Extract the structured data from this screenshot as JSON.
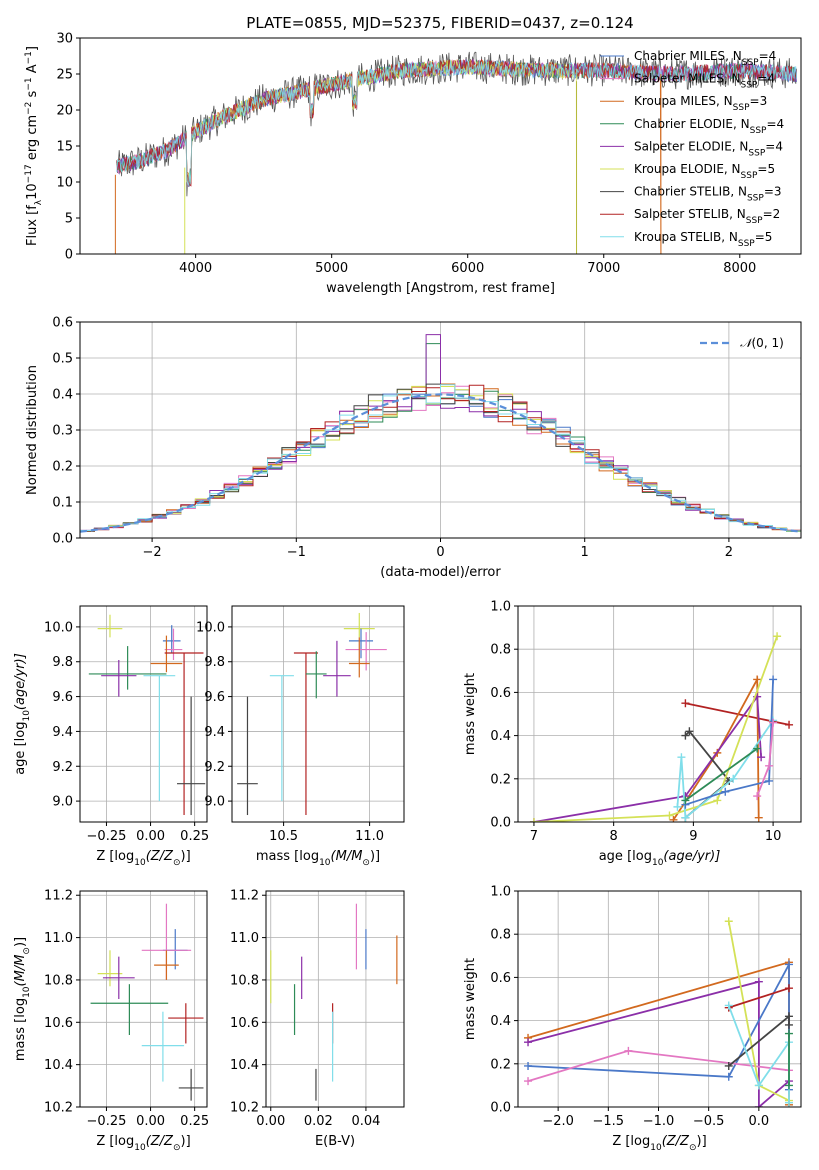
{
  "figure_title": "PLATE=0855, MJD=52375, FIBERID=0437, z=0.124",
  "legend_models": [
    {
      "label": "Chabrier MILES, N",
      "sub": "SSP",
      "eq": "=4",
      "color": "#4a78c8"
    },
    {
      "label": "Salpeter MILES, N",
      "sub": "SSP",
      "eq": "=4",
      "color": "#e377c2"
    },
    {
      "label": "Kroupa MILES, N",
      "sub": "SSP",
      "eq": "=3",
      "color": "#d2691e"
    },
    {
      "label": "Chabrier ELODIE, N",
      "sub": "SSP",
      "eq": "=4",
      "color": "#2e8b57"
    },
    {
      "label": "Salpeter ELODIE, N",
      "sub": "SSP",
      "eq": "=4",
      "color": "#8b2fa8"
    },
    {
      "label": "Kroupa ELODIE, N",
      "sub": "SSP",
      "eq": "=5",
      "color": "#d4e157"
    },
    {
      "label": "Chabrier STELIB, N",
      "sub": "SSP",
      "eq": "=3",
      "color": "#444444"
    },
    {
      "label": "Salpeter STELIB, N",
      "sub": "SSP",
      "eq": "=2",
      "color": "#b22222"
    },
    {
      "label": "Kroupa STELIB, N",
      "sub": "SSP",
      "eq": "=5",
      "color": "#80deea"
    }
  ],
  "chart_data": [
    {
      "id": "spectrum",
      "type": "line",
      "xlabel": "wavelength [Angstrom, rest frame]",
      "ylabel_parts": [
        "Flux [f",
        "λ",
        "10",
        "−17",
        " erg cm",
        "−2",
        " s",
        "−1",
        " A",
        "−1",
        "]"
      ],
      "xlim": [
        3150,
        8450
      ],
      "ylim": [
        0,
        30
      ],
      "xticks": [
        4000,
        5000,
        6000,
        7000,
        8000
      ],
      "yticks": [
        0,
        5,
        10,
        15,
        20,
        25,
        30
      ],
      "series_shape": [
        [
          3400,
          12
        ],
        [
          3600,
          13
        ],
        [
          3800,
          14.5
        ],
        [
          4000,
          17
        ],
        [
          4200,
          19
        ],
        [
          4500,
          21.5
        ],
        [
          5000,
          23.5
        ],
        [
          5500,
          25.5
        ],
        [
          6000,
          26
        ],
        [
          6500,
          25.5
        ],
        [
          7000,
          25.5
        ],
        [
          7500,
          25
        ],
        [
          8000,
          25.5
        ],
        [
          8400,
          25
        ]
      ]
    },
    {
      "id": "residuals",
      "type": "histogram",
      "xlabel": "(data-model)/error",
      "ylabel": "Normed distribution",
      "xlim": [
        -2.5,
        2.5
      ],
      "ylim": [
        0,
        0.6
      ],
      "xticks": [
        -2,
        -1,
        0,
        1,
        2
      ],
      "yticks": [
        0,
        0.1,
        0.2,
        0.3,
        0.4,
        0.5,
        0.6
      ],
      "bin_width": 0.1,
      "reference_curve": {
        "name_parts": [
          "𝒩",
          "(0, 1)"
        ],
        "color": "#5b8fd9",
        "dash": true
      }
    },
    {
      "id": "age-vs-Z",
      "type": "errorbar",
      "xlabel_parts": [
        "Z [log",
        "10",
        "(Z/Z",
        "⊙",
        ")]"
      ],
      "ylabel_parts": [
        "age  [log",
        "10",
        "(age/yr)]"
      ],
      "xlim": [
        -0.4,
        0.32
      ],
      "ylim": [
        8.88,
        10.12
      ],
      "xticks": [
        -0.25,
        0.0,
        0.25
      ],
      "xtick_labels": [
        "−0.25",
        "0.00",
        "0.25"
      ],
      "yticks": [
        9.0,
        9.2,
        9.4,
        9.6,
        9.8,
        10.0
      ],
      "points": [
        {
          "x": -0.23,
          "y": 9.99,
          "xerr": 0.07,
          "yerr": [
            0.05,
            0.08
          ],
          "color": "#d4e157"
        },
        {
          "x": 0.12,
          "y": 9.92,
          "xerr": 0.05,
          "yerr": [
            0.07,
            0.09
          ],
          "color": "#4a78c8"
        },
        {
          "x": 0.13,
          "y": 9.87,
          "xerr": 0.05,
          "yerr": [
            0.06,
            0.12
          ],
          "color": "#e377c2"
        },
        {
          "x": 0.09,
          "y": 9.79,
          "xerr": 0.09,
          "yerr": [
            0.05,
            0.16
          ],
          "color": "#d2691e"
        },
        {
          "x": 0.19,
          "y": 9.85,
          "xerr": 0.11,
          "yerr": [
            0.93,
            0.0
          ],
          "color": "#b22222"
        },
        {
          "x": -0.13,
          "y": 9.73,
          "xerr": 0.22,
          "yerr": [
            0.09,
            0.16
          ],
          "color": "#2e8b57"
        },
        {
          "x": -0.18,
          "y": 9.72,
          "xerr": 0.1,
          "yerr": [
            0.12,
            0.09
          ],
          "color": "#8b2fa8"
        },
        {
          "x": 0.05,
          "y": 9.72,
          "xerr": 0.09,
          "yerr": [
            0.72,
            0.0
          ],
          "color": "#80deea"
        },
        {
          "x": 0.23,
          "y": 9.1,
          "xerr": 0.08,
          "yerr": [
            0.18,
            0.5
          ],
          "color": "#444444"
        }
      ]
    },
    {
      "id": "age-vs-mass",
      "type": "errorbar",
      "xlabel_parts": [
        "mass [log",
        "10",
        "(M/M",
        "⊙",
        ")]"
      ],
      "xlim": [
        10.2,
        11.2
      ],
      "ylim": [
        8.88,
        10.12
      ],
      "xticks": [
        10.5,
        11.0
      ],
      "xtick_labels": [
        "10.5",
        "11.0"
      ],
      "yticks": [
        9.0,
        9.2,
        9.4,
        9.6,
        9.8,
        10.0
      ],
      "points": [
        {
          "x": 10.94,
          "y": 9.99,
          "xerr": 0.09,
          "yerr": [
            0.05,
            0.09
          ],
          "color": "#d4e157"
        },
        {
          "x": 10.95,
          "y": 9.92,
          "xerr": 0.07,
          "yerr": [
            0.1,
            0.07
          ],
          "color": "#4a78c8"
        },
        {
          "x": 10.98,
          "y": 9.87,
          "xerr": 0.12,
          "yerr": [
            0.12,
            0.1
          ],
          "color": "#e377c2"
        },
        {
          "x": 10.94,
          "y": 9.79,
          "xerr": 0.06,
          "yerr": [
            0.08,
            0.15
          ],
          "color": "#d2691e"
        },
        {
          "x": 10.63,
          "y": 9.85,
          "xerr": 0.07,
          "yerr": [
            0.93,
            0.0
          ],
          "color": "#b22222"
        },
        {
          "x": 10.69,
          "y": 9.73,
          "xerr": 0.06,
          "yerr": [
            0.14,
            0.13
          ],
          "color": "#2e8b57"
        },
        {
          "x": 10.81,
          "y": 9.72,
          "xerr": 0.08,
          "yerr": [
            0.12,
            0.2
          ],
          "color": "#8b2fa8"
        },
        {
          "x": 10.49,
          "y": 9.72,
          "xerr": 0.07,
          "yerr": [
            0.72,
            0.0
          ],
          "color": "#80deea"
        },
        {
          "x": 10.29,
          "y": 9.1,
          "xerr": 0.06,
          "yerr": [
            0.18,
            0.5
          ],
          "color": "#444444"
        }
      ]
    },
    {
      "id": "weight-vs-age",
      "type": "line",
      "xlabel_parts": [
        "age  [log",
        "10",
        "(age/yr)]"
      ],
      "ylabel": "mass weight",
      "xlim": [
        6.8,
        10.35
      ],
      "ylim": [
        0,
        1
      ],
      "xticks": [
        7,
        8,
        9,
        10
      ],
      "yticks": [
        0.0,
        0.2,
        0.4,
        0.6,
        0.8,
        1.0
      ],
      "series": [
        {
          "color": "#b22222",
          "points": [
            [
              8.9,
              0.55
            ],
            [
              10.2,
              0.45
            ]
          ]
        },
        {
          "color": "#d2691e",
          "points": [
            [
              8.75,
              0.01
            ],
            [
              9.3,
              0.32
            ],
            [
              9.8,
              0.66
            ],
            [
              9.82,
              0.02
            ]
          ]
        },
        {
          "color": "#8b2fa8",
          "points": [
            [
              7.0,
              0.0
            ],
            [
              8.9,
              0.12
            ],
            [
              9.8,
              0.58
            ],
            [
              9.85,
              0.3
            ]
          ]
        },
        {
          "color": "#444444",
          "points": [
            [
              8.9,
              0.4
            ],
            [
              8.95,
              0.42
            ],
            [
              9.45,
              0.19
            ],
            [
              8.9,
              0.02
            ]
          ]
        },
        {
          "color": "#d4e157",
          "points": [
            [
              7.0,
              0.0
            ],
            [
              8.7,
              0.03
            ],
            [
              9.3,
              0.1
            ],
            [
              10.05,
              0.86
            ]
          ]
        },
        {
          "color": "#80deea",
          "points": [
            [
              8.8,
              0.07
            ],
            [
              8.85,
              0.3
            ],
            [
              8.9,
              0.02
            ],
            [
              9.5,
              0.2
            ],
            [
              10.0,
              0.47
            ]
          ]
        },
        {
          "color": "#4a78c8",
          "points": [
            [
              8.9,
              0.08
            ],
            [
              9.4,
              0.14
            ],
            [
              9.95,
              0.19
            ],
            [
              10.0,
              0.66
            ]
          ]
        },
        {
          "color": "#e377c2",
          "points": [
            [
              9.8,
              0.12
            ],
            [
              9.95,
              0.26
            ],
            [
              10.0,
              0.46
            ]
          ]
        },
        {
          "color": "#2e8b57",
          "points": [
            [
              8.9,
              0.1
            ],
            [
              9.8,
              0.34
            ]
          ]
        }
      ]
    },
    {
      "id": "mass-vs-Z",
      "type": "errorbar",
      "xlabel_parts": [
        "Z [log",
        "10",
        "(Z/Z",
        "⊙",
        ")]"
      ],
      "ylabel_parts": [
        "mass [log",
        "10",
        "(M/M",
        "⊙",
        ")]"
      ],
      "xlim": [
        -0.4,
        0.32
      ],
      "ylim": [
        10.2,
        11.22
      ],
      "xticks": [
        -0.25,
        0.0,
        0.25
      ],
      "xtick_labels": [
        "−0.25",
        "0.00",
        "0.25"
      ],
      "yticks": [
        10.2,
        10.4,
        10.6,
        10.8,
        11.0,
        11.2
      ],
      "points": [
        {
          "x": -0.23,
          "y": 10.83,
          "xerr": 0.07,
          "yerr": [
            0.06,
            0.11
          ],
          "color": "#d4e157"
        },
        {
          "x": 0.14,
          "y": 10.94,
          "xerr": 0.07,
          "yerr": [
            0.09,
            0.1
          ],
          "color": "#4a78c8"
        },
        {
          "x": 0.09,
          "y": 10.94,
          "xerr": 0.14,
          "yerr": [
            0.14,
            0.22
          ],
          "color": "#e377c2"
        },
        {
          "x": 0.09,
          "y": 10.87,
          "xerr": 0.07,
          "yerr": [
            0.07,
            0.07
          ],
          "color": "#d2691e"
        },
        {
          "x": 0.2,
          "y": 10.62,
          "xerr": 0.1,
          "yerr": [
            0.12,
            0.07
          ],
          "color": "#b22222"
        },
        {
          "x": -0.12,
          "y": 10.69,
          "xerr": 0.22,
          "yerr": [
            0.15,
            0.09
          ],
          "color": "#2e8b57"
        },
        {
          "x": -0.18,
          "y": 10.81,
          "xerr": 0.09,
          "yerr": [
            0.1,
            0.1
          ],
          "color": "#8b2fa8"
        },
        {
          "x": 0.07,
          "y": 10.49,
          "xerr": 0.12,
          "yerr": [
            0.17,
            0.16
          ],
          "color": "#80deea"
        },
        {
          "x": 0.23,
          "y": 10.29,
          "xerr": 0.07,
          "yerr": [
            0.06,
            0.09
          ],
          "color": "#444444"
        }
      ]
    },
    {
      "id": "mass-vs-EBV",
      "type": "errorbar",
      "xlabel": "E(B-V)",
      "xlim": [
        -0.002,
        0.056
      ],
      "ylim": [
        10.2,
        11.22
      ],
      "xticks": [
        0.0,
        0.02,
        0.04
      ],
      "xtick_labels": [
        "0.00",
        "0.02",
        "0.04"
      ],
      "yticks": [
        10.2,
        10.4,
        10.6,
        10.8,
        11.0,
        11.2
      ],
      "points": [
        {
          "x": 0.0,
          "y": 10.83,
          "xerr": 0.0,
          "yerr": [
            0.14,
            0.11
          ],
          "color": "#d4e157"
        },
        {
          "x": 0.01,
          "y": 10.69,
          "xerr": 0.0,
          "yerr": [
            0.15,
            0.09
          ],
          "color": "#2e8b57"
        },
        {
          "x": 0.013,
          "y": 10.81,
          "xerr": 0.0,
          "yerr": [
            0.1,
            0.1
          ],
          "color": "#8b2fa8"
        },
        {
          "x": 0.019,
          "y": 10.29,
          "xerr": 0.0,
          "yerr": [
            0.06,
            0.09
          ],
          "color": "#444444"
        },
        {
          "x": 0.026,
          "y": 10.62,
          "xerr": 0.0,
          "yerr": [
            0.12,
            0.07
          ],
          "color": "#b22222"
        },
        {
          "x": 0.026,
          "y": 10.49,
          "xerr": 0.0,
          "yerr": [
            0.17,
            0.16
          ],
          "color": "#80deea"
        },
        {
          "x": 0.036,
          "y": 10.94,
          "xerr": 0.0,
          "yerr": [
            0.09,
            0.22
          ],
          "color": "#e377c2"
        },
        {
          "x": 0.04,
          "y": 10.94,
          "xerr": 0.0,
          "yerr": [
            0.09,
            0.1
          ],
          "color": "#4a78c8"
        },
        {
          "x": 0.053,
          "y": 10.87,
          "xerr": 0.0,
          "yerr": [
            0.09,
            0.14
          ],
          "color": "#d2691e"
        }
      ]
    },
    {
      "id": "weight-vs-Z",
      "type": "line",
      "xlabel_parts": [
        "Z [log",
        "10",
        "(Z/Z",
        "⊙",
        ")]"
      ],
      "ylabel": "mass weight",
      "xlim": [
        -2.4,
        0.42
      ],
      "ylim": [
        0,
        1
      ],
      "xticks": [
        -2.0,
        -1.5,
        -1.0,
        -0.5,
        0.0
      ],
      "xtick_labels": [
        "−2.0",
        "−1.5",
        "−1.0",
        "−0.5",
        "0.0"
      ],
      "yticks": [
        0.0,
        0.2,
        0.4,
        0.6,
        0.8,
        1.0
      ],
      "series": [
        {
          "color": "#d2691e",
          "points": [
            [
              -2.3,
              0.32
            ],
            [
              0.3,
              0.67
            ],
            [
              0.3,
              0.01
            ]
          ]
        },
        {
          "color": "#8b2fa8",
          "points": [
            [
              -2.3,
              0.3
            ],
            [
              0.0,
              0.58
            ],
            [
              0.0,
              0.0
            ],
            [
              0.3,
              0.12
            ]
          ]
        },
        {
          "color": "#4a78c8",
          "points": [
            [
              -2.3,
              0.19
            ],
            [
              -0.3,
              0.14
            ],
            [
              0.3,
              0.66
            ],
            [
              0.3,
              0.08
            ]
          ]
        },
        {
          "color": "#e377c2",
          "points": [
            [
              -2.3,
              0.12
            ],
            [
              -1.3,
              0.26
            ],
            [
              0.3,
              0.17
            ]
          ]
        },
        {
          "color": "#d4e157",
          "points": [
            [
              -0.3,
              0.86
            ],
            [
              0.0,
              0.1
            ],
            [
              0.3,
              0.03
            ]
          ]
        },
        {
          "color": "#b22222",
          "points": [
            [
              -0.3,
              0.46
            ],
            [
              0.3,
              0.55
            ]
          ]
        },
        {
          "color": "#444444",
          "points": [
            [
              -0.3,
              0.19
            ],
            [
              0.3,
              0.42
            ],
            [
              0.3,
              0.38
            ]
          ]
        },
        {
          "color": "#80deea",
          "points": [
            [
              -0.3,
              0.47
            ],
            [
              0.0,
              0.1
            ],
            [
              0.3,
              0.3
            ],
            [
              0.3,
              0.02
            ]
          ]
        },
        {
          "color": "#2e8b57",
          "points": [
            [
              0.3,
              0.34
            ],
            [
              0.3,
              0.1
            ]
          ]
        }
      ]
    }
  ]
}
